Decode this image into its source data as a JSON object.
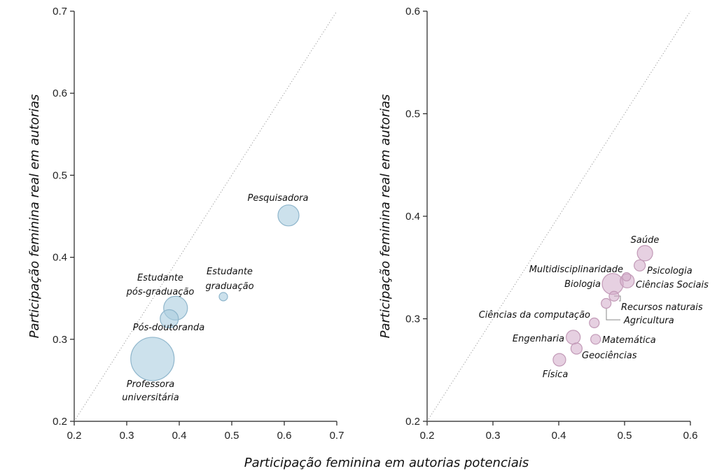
{
  "xlabel": "Participação feminina em autorias potenciais",
  "chart_data": [
    {
      "type": "scatter",
      "subtype": "bubble",
      "title": "",
      "xlabel": "Participação feminina em autorias potenciais",
      "ylabel": "Participação feminina real em autorias",
      "xlim": [
        0.2,
        0.7
      ],
      "ylim": [
        0.2,
        0.7
      ],
      "xticks": [
        "0.2",
        "0.3",
        "0.4",
        "0.5",
        "0.6",
        "0.7"
      ],
      "yticks": [
        "0.2",
        "0.3",
        "0.4",
        "0.5",
        "0.6",
        "0.7"
      ],
      "reference_line": "y = x (dotted)",
      "color": "#aacde0",
      "points": [
        {
          "label": "Pesquisadora",
          "x": 0.608,
          "y": 0.451,
          "size": 15
        },
        {
          "label": "Estudante graduação",
          "x": 0.484,
          "y": 0.352,
          "size": 6
        },
        {
          "label": "Estudante pós-graduação",
          "x": 0.393,
          "y": 0.338,
          "size": 17
        },
        {
          "label": "Pós-doutoranda",
          "x": 0.381,
          "y": 0.325,
          "size": 13
        },
        {
          "label": "Professora universitária",
          "x": 0.349,
          "y": 0.276,
          "size": 31
        }
      ]
    },
    {
      "type": "scatter",
      "subtype": "bubble",
      "title": "",
      "xlabel": "Participação feminina em autorias potenciais",
      "ylabel": "Participação feminina real em autorias",
      "xlim": [
        0.2,
        0.6
      ],
      "ylim": [
        0.2,
        0.6
      ],
      "xticks": [
        "0.2",
        "0.3",
        "0.4",
        "0.5",
        "0.6"
      ],
      "yticks": [
        "0.2",
        "0.3",
        "0.4",
        "0.5",
        "0.6"
      ],
      "reference_line": "y = x (dotted)",
      "color": "#d9b7d0",
      "points": [
        {
          "label": "Saúde",
          "x": 0.531,
          "y": 0.364,
          "size": 11
        },
        {
          "label": "Psicologia",
          "x": 0.523,
          "y": 0.352,
          "size": 8
        },
        {
          "label": "Multidisciplinaridade",
          "x": 0.503,
          "y": 0.341,
          "size": 6
        },
        {
          "label": "Ciências Sociais",
          "x": 0.504,
          "y": 0.337,
          "size": 10
        },
        {
          "label": "Biologia",
          "x": 0.482,
          "y": 0.334,
          "size": 15
        },
        {
          "label": "Recursos naturais",
          "x": 0.484,
          "y": 0.322,
          "size": 7
        },
        {
          "label": "Agricultura",
          "x": 0.472,
          "y": 0.315,
          "size": 7
        },
        {
          "label": "Ciências da computação",
          "x": 0.454,
          "y": 0.296,
          "size": 7
        },
        {
          "label": "Engenharia",
          "x": 0.422,
          "y": 0.282,
          "size": 10
        },
        {
          "label": "Matemática",
          "x": 0.456,
          "y": 0.28,
          "size": 7
        },
        {
          "label": "Geociências",
          "x": 0.427,
          "y": 0.271,
          "size": 8
        },
        {
          "label": "Física",
          "x": 0.401,
          "y": 0.26,
          "size": 9
        }
      ]
    }
  ]
}
